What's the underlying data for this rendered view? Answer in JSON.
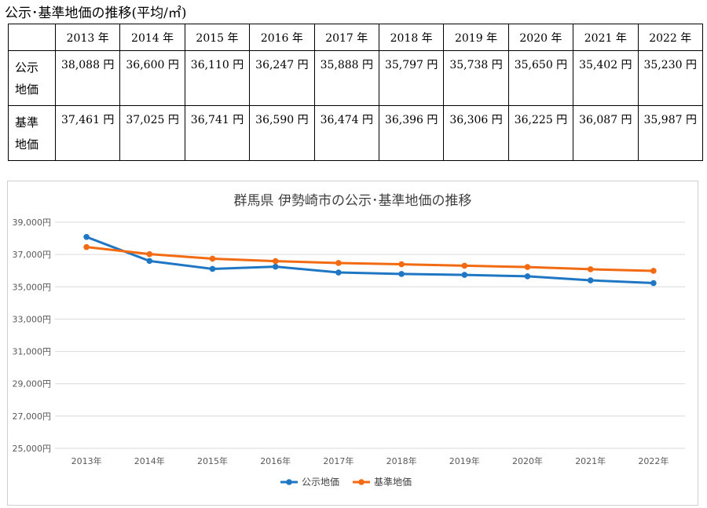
{
  "caption": "公示･基準地価の推移(平均/㎡)",
  "table": {
    "years": [
      "2013 年",
      "2014 年",
      "2015 年",
      "2016 年",
      "2017 年",
      "2018 年",
      "2019 年",
      "2020 年",
      "2021 年",
      "2022 年"
    ],
    "rows": [
      {
        "label_lines": [
          "公示",
          "地価"
        ],
        "values": [
          "38,088 円",
          "36,600 円",
          "36,110 円",
          "36,247 円",
          "35,888 円",
          "35,797 円",
          "35,738 円",
          "35,650 円",
          "35,402 円",
          "35,230 円"
        ]
      },
      {
        "label_lines": [
          "基準",
          "地価"
        ],
        "values": [
          "37,461 円",
          "37,025 円",
          "36,741 円",
          "36,590 円",
          "36,474 円",
          "36,396 円",
          "36,306 円",
          "36,225 円",
          "36,087 円",
          "35,987 円"
        ]
      }
    ]
  },
  "chart_data": {
    "type": "line",
    "title": "群馬県 伊勢崎市の公示･基準地価の推移",
    "categories": [
      "2013年",
      "2014年",
      "2015年",
      "2016年",
      "2017年",
      "2018年",
      "2019年",
      "2020年",
      "2021年",
      "2022年"
    ],
    "series": [
      {
        "name": "公示地価",
        "color": "#1f77c4",
        "values": [
          38088,
          36600,
          36110,
          36247,
          35888,
          35797,
          35738,
          35650,
          35402,
          35230
        ]
      },
      {
        "name": "基準地価",
        "color": "#f26a11",
        "values": [
          37461,
          37025,
          36741,
          36590,
          36474,
          36396,
          36306,
          36225,
          36087,
          35987
        ]
      }
    ],
    "ylim": [
      25000,
      39000
    ],
    "yticks": [
      39000,
      37000,
      35000,
      33000,
      31000,
      29000,
      27000,
      25000
    ],
    "ytick_labels": [
      "39,000円",
      "37,000円",
      "35,000円",
      "33,000円",
      "31,000円",
      "29,000円",
      "27,000円",
      "25,000円"
    ],
    "grid": true,
    "legend_position": "bottom",
    "xlabel": "",
    "ylabel": ""
  }
}
